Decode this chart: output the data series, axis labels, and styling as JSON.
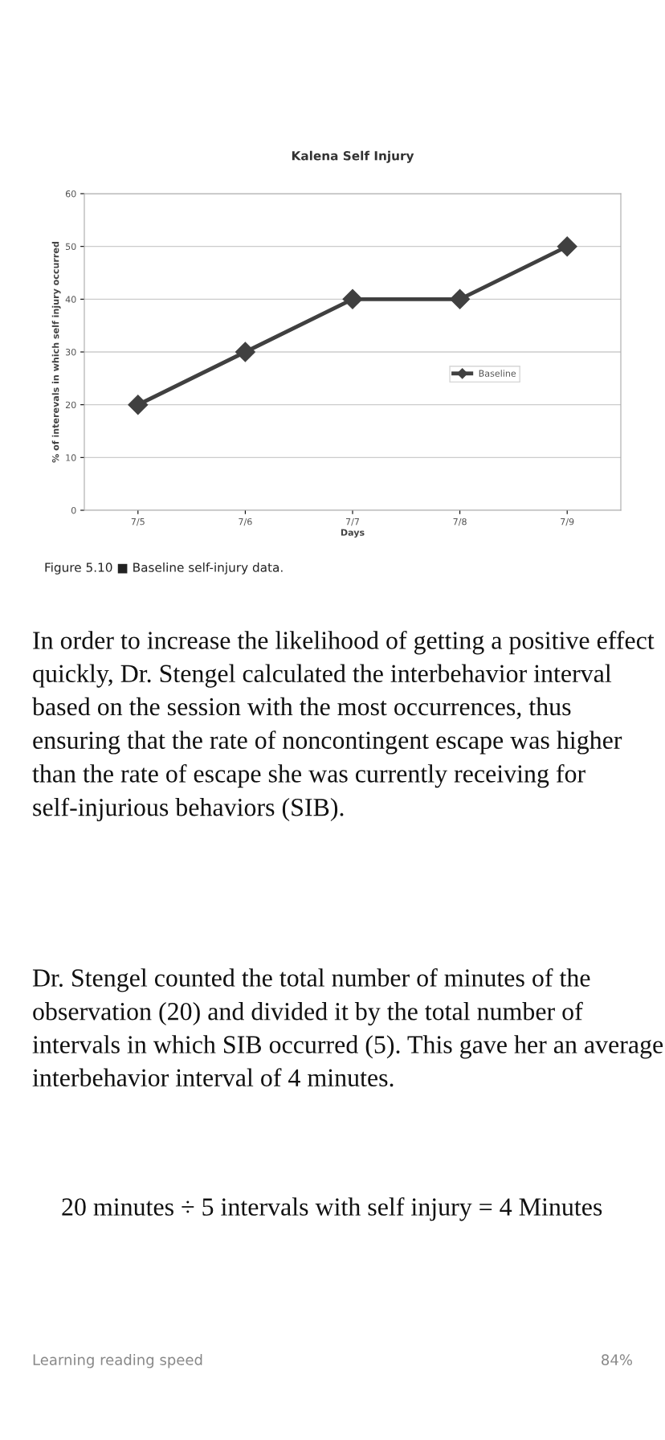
{
  "chart_data": {
    "type": "line",
    "title": "Kalena Self Injury",
    "xlabel": "Days",
    "ylabel": "% of interevals in which self injury occurred",
    "categories": [
      "7/5",
      "7/6",
      "7/7",
      "7/8",
      "7/9"
    ],
    "series": [
      {
        "name": "Baseline",
        "color": "#404040",
        "values": [
          20,
          30,
          40,
          40,
          50
        ]
      }
    ],
    "ylim": [
      0,
      60
    ],
    "yticks": [
      0,
      10,
      20,
      30,
      40,
      50,
      60
    ],
    "grid": "y",
    "legend": "right",
    "marker": "diamond",
    "line_style": "solid",
    "annotations": [
      "Figure 5.10 ■ Baseline self-injury data.",
      "In order to increase the likelihood of getting a positive effect quickly, Dr. Stengel calculated the interbehavior interval based on the session with the most occurrences, thus ensuring that the rate of noncontingent escape was higher than the rate of escape she was currently receiving for self-injurious behaviors (SIB).",
      "Dr. Stengel counted the total number of minutes of the observation (20) and divided it by the total number of intervals in which SIB occurred (5). This gave her an average interbehavior interval of 4 minutes.",
      "20 minutes ÷ 5 intervals with self injury = 4 Minutes",
      "Learning reading speed",
      "84%"
    ]
  }
}
